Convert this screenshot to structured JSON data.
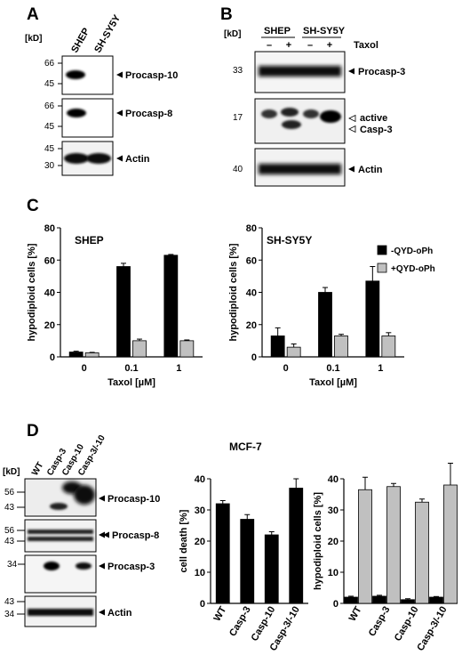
{
  "panels": {
    "A": {
      "letter": "A",
      "kd_label": "[kD]",
      "lanes": [
        "SHEP",
        "SH-SY5Y"
      ],
      "blots": [
        {
          "markers": [
            "66",
            "45"
          ],
          "label": "Procasp-10"
        },
        {
          "markers": [
            "66",
            "45"
          ],
          "label": "Procasp-8"
        },
        {
          "markers": [
            "45",
            "30"
          ],
          "label": "Actin"
        }
      ]
    },
    "B": {
      "letter": "B",
      "kd_label": "[kD]",
      "groups": [
        "SHEP",
        "SH-SY5Y"
      ],
      "treatment_label": "Taxol",
      "signs": [
        "–",
        "+",
        "–",
        "+"
      ],
      "blots": [
        {
          "markers": [
            "33"
          ],
          "label": "Procasp-3"
        },
        {
          "markers": [
            "17"
          ],
          "label_line1": "active",
          "label_line2": "Casp-3"
        },
        {
          "markers": [
            "40"
          ],
          "label": "Actin"
        }
      ]
    },
    "C": {
      "letter": "C",
      "legend": [
        "-QYD-oPh",
        "+QYD-oPh"
      ]
    },
    "D": {
      "letter": "D",
      "title": "MCF-7",
      "kd_label": "[kD]",
      "lanes": [
        "WT",
        "Casp-3",
        "Casp-10",
        "Casp-3/-10"
      ],
      "blots": [
        {
          "markers": [
            "56",
            "43"
          ],
          "label": "Procasp-10"
        },
        {
          "markers": [
            "56",
            "43"
          ],
          "label": "Procasp-8"
        },
        {
          "markers": [
            "34"
          ],
          "label": "Procasp-3"
        },
        {
          "markers": [
            "43",
            "34"
          ],
          "label": "Actin"
        }
      ]
    }
  },
  "colors": {
    "series_black": "#000000",
    "series_gray": "#c0c0c0"
  },
  "chart_data": [
    {
      "type": "bar",
      "panel": "C",
      "title": "SHEP",
      "xlabel": "Taxol [µM]",
      "ylabel": "hypodiploid cells [%]",
      "categories": [
        "0",
        "0.1",
        "1"
      ],
      "ylim": [
        0,
        80
      ],
      "yticks": [
        "0",
        "20",
        "40",
        "60",
        "80"
      ],
      "series": [
        {
          "name": "-QYD-oPh",
          "values": [
            3,
            56,
            63
          ],
          "errors": [
            0.5,
            2,
            0.5
          ]
        },
        {
          "name": "+QYD-oPh",
          "values": [
            2.5,
            10,
            10
          ],
          "errors": [
            0.3,
            1,
            0.5
          ]
        }
      ]
    },
    {
      "type": "bar",
      "panel": "C",
      "title": "SH-SY5Y",
      "xlabel": "Taxol [µM]",
      "ylabel": "hypodiploid cells [%]",
      "categories": [
        "0",
        "0.1",
        "1"
      ],
      "ylim": [
        0,
        80
      ],
      "yticks": [
        "0",
        "20",
        "40",
        "60",
        "80"
      ],
      "series": [
        {
          "name": "-QYD-oPh",
          "values": [
            13,
            40,
            47
          ],
          "errors": [
            5,
            3,
            9
          ]
        },
        {
          "name": "+QYD-oPh",
          "values": [
            6,
            13,
            13
          ],
          "errors": [
            2,
            1,
            2
          ]
        }
      ]
    },
    {
      "type": "bar",
      "panel": "D",
      "title": "",
      "xlabel": "",
      "ylabel": "cell death [%]",
      "categories": [
        "WT",
        "Casp-3",
        "Casp-10",
        "Casp-3/-10"
      ],
      "ylim": [
        0,
        40
      ],
      "yticks": [
        "0",
        "10",
        "20",
        "30",
        "40"
      ],
      "series": [
        {
          "values": [
            32,
            27,
            22,
            37
          ],
          "errors": [
            1,
            1.5,
            1,
            3
          ]
        }
      ]
    },
    {
      "type": "bar",
      "panel": "D",
      "title": "",
      "xlabel": "",
      "ylabel": "hypodiploid cells [%]",
      "categories": [
        "WT",
        "Casp-3",
        "Casp-10",
        "Casp-3/-10"
      ],
      "ylim": [
        0,
        40
      ],
      "yticks": [
        "0",
        "10",
        "20",
        "30",
        "40"
      ],
      "series": [
        {
          "values": [
            2,
            2.3,
            1.2,
            2
          ],
          "errors": [
            0.3,
            0.3,
            0.3,
            0.2
          ]
        },
        {
          "values": [
            36.5,
            37.5,
            32.5,
            38
          ],
          "errors": [
            4,
            1,
            1,
            7
          ]
        }
      ]
    }
  ]
}
